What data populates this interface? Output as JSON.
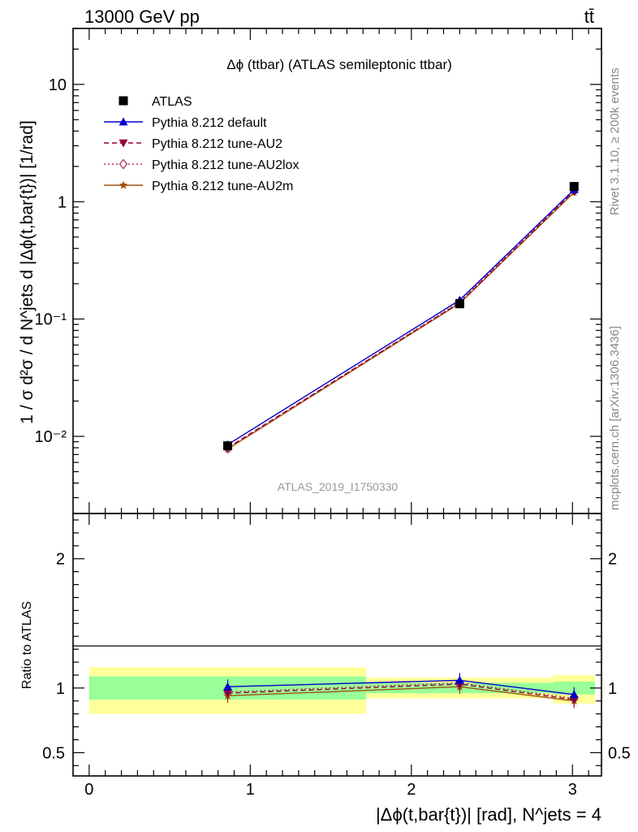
{
  "header": {
    "energy_label": "13000 GeV pp",
    "process_label": "tt̄"
  },
  "side_labels": {
    "rivet": "Rivet 3.1.10, ≥ 200k events",
    "mcplots": "mcplots.cern.ch [arXiv:1306.3436]"
  },
  "chart_data": [
    {
      "type": "line",
      "panel": "main",
      "title": "Δϕ (ttbar) (ATLAS semileptonic ttbar)",
      "watermark": "ATLAS_2019_I1750330",
      "ylabel": "1 / σ d²σ / d N^jets d |Δϕ(t,bar{t})| [1/rad]",
      "yscale": "log",
      "xlim": [
        -0.1,
        3.18
      ],
      "ylim": [
        0.0022,
        30
      ],
      "ytick_labels": [
        "10⁻²",
        "10⁻¹",
        "1",
        "10"
      ],
      "ytick_values": [
        0.01,
        0.1,
        1,
        10
      ],
      "legend_position": "top-left",
      "x": [
        0.86,
        2.3,
        3.01
      ],
      "series": [
        {
          "name": "ATLAS",
          "values": [
            0.0083,
            0.135,
            1.35
          ],
          "color": "#000000",
          "marker": "square",
          "style": "points"
        },
        {
          "name": "Pythia 8.212 default",
          "values": [
            0.0085,
            0.145,
            1.27
          ],
          "color": "#0000cc",
          "marker": "triangle-up",
          "style": "solid"
        },
        {
          "name": "Pythia 8.212 tune-AU2",
          "values": [
            0.008,
            0.138,
            1.23
          ],
          "color": "#990033",
          "marker": "triangle-down",
          "style": "dashed"
        },
        {
          "name": "Pythia 8.212 tune-AU2lox",
          "values": [
            0.0079,
            0.14,
            1.24
          ],
          "color": "#b03050",
          "marker": "diamond-open",
          "style": "dotted"
        },
        {
          "name": "Pythia 8.212 tune-AU2m",
          "values": [
            0.0078,
            0.136,
            1.2
          ],
          "color": "#a05010",
          "marker": "star",
          "style": "solid"
        }
      ]
    },
    {
      "type": "line",
      "panel": "ratio",
      "ylabel": "Ratio to ATLAS",
      "xlabel": "|Δϕ(t,bar{t})| [rad], N^jets = 4",
      "xlim": [
        -0.1,
        3.18
      ],
      "ylim": [
        0.32,
        2.35
      ],
      "ytick_labels": [
        "0.5",
        "1",
        "2"
      ],
      "ytick_values": [
        0.5,
        1,
        2
      ],
      "xtick_labels": [
        "0",
        "1",
        "2",
        "3"
      ],
      "xtick_values": [
        0,
        1,
        2,
        3
      ],
      "bands": [
        {
          "x0": 0.0,
          "x1": 1.72,
          "inner": [
            0.91,
            1.09
          ],
          "outer": [
            0.8,
            1.16
          ]
        },
        {
          "x0": 1.72,
          "x1": 2.88,
          "inner": [
            0.96,
            1.04
          ],
          "outer": [
            0.92,
            1.08
          ]
        },
        {
          "x0": 2.88,
          "x1": 3.14,
          "inner": [
            0.95,
            1.05
          ],
          "outer": [
            0.88,
            1.1
          ]
        }
      ],
      "x": [
        0.86,
        2.3,
        3.01
      ],
      "series": [
        {
          "name": "Pythia 8.212 default",
          "values": [
            1.01,
            1.06,
            0.95
          ],
          "color": "#0000cc",
          "marker": "triangle-up",
          "style": "solid"
        },
        {
          "name": "Pythia 8.212 tune-AU2",
          "values": [
            0.96,
            1.03,
            0.91
          ],
          "color": "#990033",
          "marker": "triangle-down",
          "style": "dashed"
        },
        {
          "name": "Pythia 8.212 tune-AU2lox",
          "values": [
            0.97,
            1.04,
            0.92
          ],
          "color": "#b03050",
          "marker": "diamond-open",
          "style": "dotted"
        },
        {
          "name": "Pythia 8.212 tune-AU2m",
          "values": [
            0.94,
            1.01,
            0.9
          ],
          "color": "#a05010",
          "marker": "star",
          "style": "solid"
        }
      ]
    }
  ]
}
